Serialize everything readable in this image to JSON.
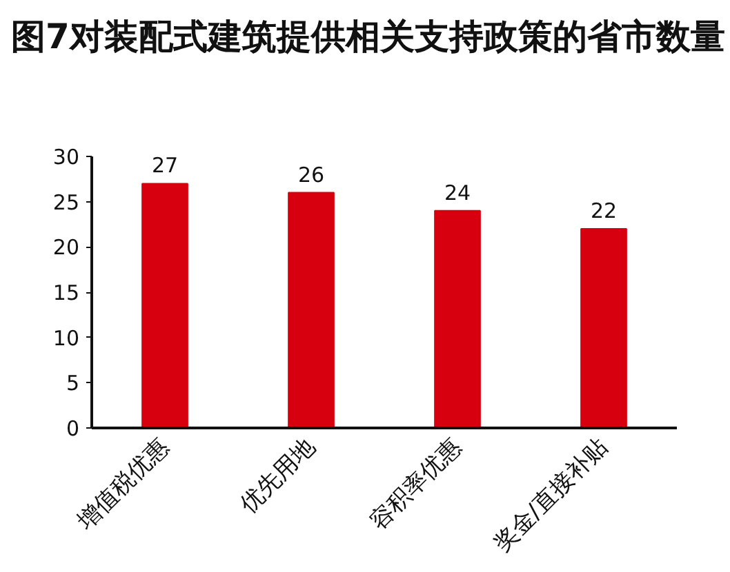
{
  "chart_data": {
    "type": "bar",
    "title": "图7对装配式建筑提供相关支持政策的省市数量",
    "categories": [
      "增值税优惠",
      "优先用地",
      "容积率优惠",
      "奖金/直接补贴"
    ],
    "values": [
      27,
      26,
      24,
      22
    ],
    "color": "#d7000f",
    "ylim": [
      0,
      30
    ],
    "yticks": [
      0,
      5,
      10,
      15,
      20,
      25,
      30
    ],
    "grid": false,
    "data_labels": true
  }
}
